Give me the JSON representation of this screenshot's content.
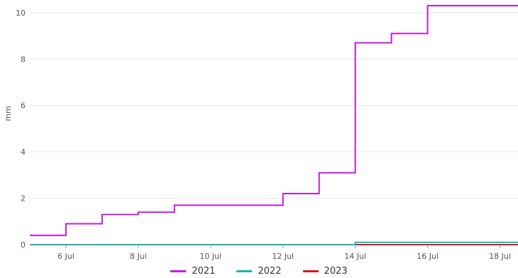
{
  "chart_data": {
    "type": "line",
    "step": true,
    "ylabel": "mm",
    "xlabel": "",
    "title": "",
    "ylim": [
      0,
      10.3
    ],
    "yticks": [
      0,
      2,
      4,
      6,
      8,
      10
    ],
    "xlim": [
      "2021-07-05",
      "2021-07-18T12:00"
    ],
    "xticks": [
      {
        "date": "2021-07-06",
        "label": "6 Jul"
      },
      {
        "date": "2021-07-08",
        "label": "8 Jul"
      },
      {
        "date": "2021-07-10",
        "label": "10 Jul"
      },
      {
        "date": "2021-07-12",
        "label": "12 Jul"
      },
      {
        "date": "2021-07-14",
        "label": "14 Jul"
      },
      {
        "date": "2021-07-16",
        "label": "16 Jul"
      },
      {
        "date": "2021-07-18",
        "label": "18 Jul"
      }
    ],
    "grid": true,
    "legend_position": "bottom",
    "series": [
      {
        "name": "2021",
        "color": "#c21ce0",
        "x": [
          "2021-07-05",
          "2021-07-06",
          "2021-07-07",
          "2021-07-08",
          "2021-07-09",
          "2021-07-10",
          "2021-07-11",
          "2021-07-12",
          "2021-07-13",
          "2021-07-14",
          "2021-07-15",
          "2021-07-16",
          "2021-07-17",
          "2021-07-18"
        ],
        "y": [
          0.4,
          0.9,
          1.3,
          1.4,
          1.7,
          1.7,
          1.7,
          2.2,
          3.1,
          8.7,
          9.1,
          10.3,
          10.3,
          10.3
        ]
      },
      {
        "name": "2022",
        "color": "#1fb5b5",
        "x": [
          "2021-07-05",
          "2021-07-06",
          "2021-07-07",
          "2021-07-08",
          "2021-07-09",
          "2021-07-10",
          "2021-07-11",
          "2021-07-12",
          "2021-07-13",
          "2021-07-14",
          "2021-07-15",
          "2021-07-16",
          "2021-07-17",
          "2021-07-18"
        ],
        "y": [
          0,
          0,
          0,
          0,
          0,
          0,
          0,
          0,
          0,
          0.1,
          0.1,
          0.1,
          0.1,
          0.1
        ]
      },
      {
        "name": "2023",
        "color": "#cc1f1f",
        "x": [
          "2021-07-05",
          "2021-07-06",
          "2021-07-07",
          "2021-07-08",
          "2021-07-09",
          "2021-07-10",
          "2021-07-11",
          "2021-07-12",
          "2021-07-13",
          "2021-07-14",
          "2021-07-15",
          "2021-07-16",
          "2021-07-17",
          "2021-07-18"
        ],
        "y": [
          0,
          0,
          0,
          0,
          0,
          0,
          0,
          0,
          0,
          0,
          0,
          0,
          0,
          0
        ]
      }
    ]
  }
}
